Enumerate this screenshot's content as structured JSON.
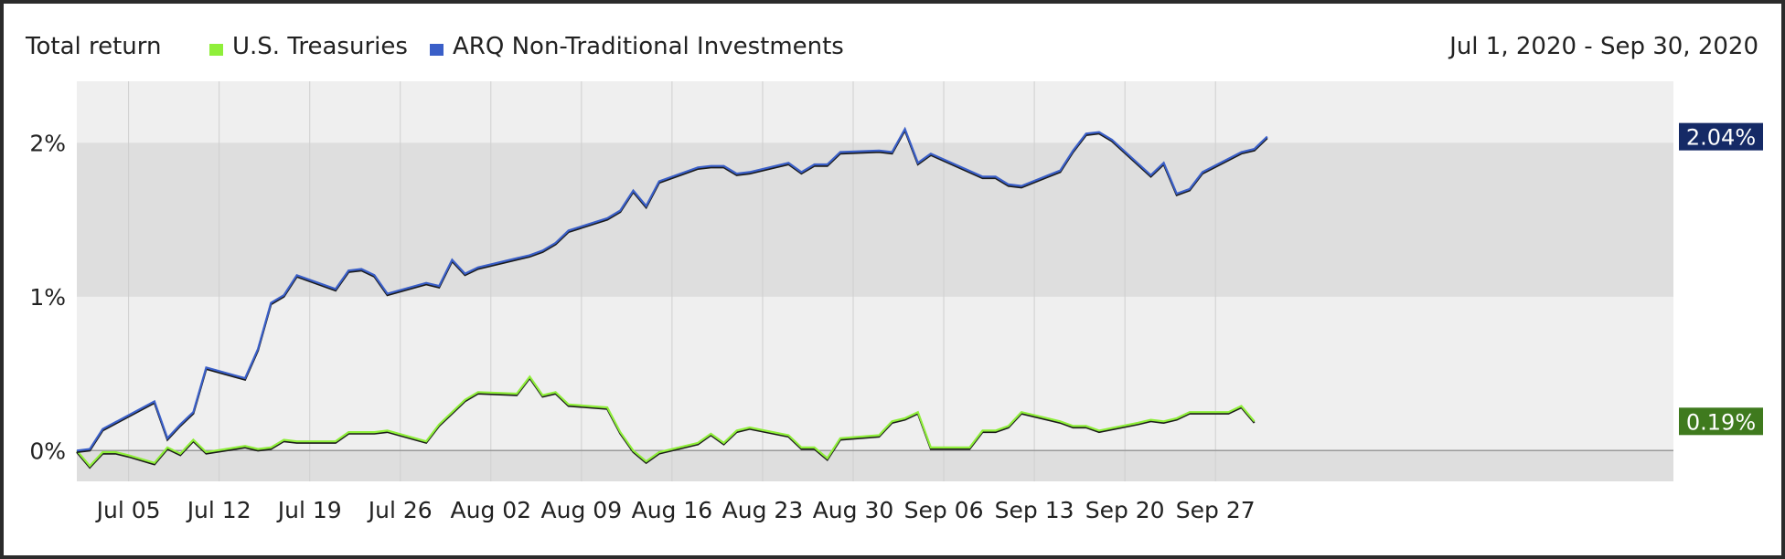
{
  "header": {
    "title": "Total return",
    "date_range": "Jul 1, 2020 - Sep 30, 2020"
  },
  "colors": {
    "treasuries": "#8fef3a",
    "treasuries_badge": "#3f7a1e",
    "arq": "#3a5fc8",
    "arq_badge": "#152a66",
    "band_light": "#efefef",
    "band_dark": "#dedede"
  },
  "chart_data": {
    "type": "line",
    "x_start": "2020-07-01",
    "x_end": "2020-09-30",
    "ylim": [
      -0.2,
      2.4
    ],
    "ylabel": "",
    "xlabel": "",
    "y_ticks": [
      {
        "value": 0,
        "label": "0%"
      },
      {
        "value": 1,
        "label": "1%"
      },
      {
        "value": 2,
        "label": "2%"
      }
    ],
    "x_ticks": [
      {
        "date": "2020-07-05",
        "label": "Jul 05"
      },
      {
        "date": "2020-07-12",
        "label": "Jul 12"
      },
      {
        "date": "2020-07-19",
        "label": "Jul 19"
      },
      {
        "date": "2020-07-26",
        "label": "Jul 26"
      },
      {
        "date": "2020-08-02",
        "label": "Aug 02"
      },
      {
        "date": "2020-08-09",
        "label": "Aug 09"
      },
      {
        "date": "2020-08-16",
        "label": "Aug 16"
      },
      {
        "date": "2020-08-23",
        "label": "Aug 23"
      },
      {
        "date": "2020-08-30",
        "label": "Aug 30"
      },
      {
        "date": "2020-09-06",
        "label": "Sep 06"
      },
      {
        "date": "2020-09-13",
        "label": "Sep 13"
      },
      {
        "date": "2020-09-20",
        "label": "Sep 20"
      },
      {
        "date": "2020-09-27",
        "label": "Sep 27"
      }
    ],
    "grid": true,
    "legend_position": "top-left",
    "series": [
      {
        "name": "U.S. Treasuries",
        "end_label": "0.19%",
        "points": [
          {
            "x": "2020-07-01",
            "y": 0.0
          },
          {
            "x": "2020-07-02",
            "y": -0.1
          },
          {
            "x": "2020-07-03",
            "y": -0.01
          },
          {
            "x": "2020-07-04",
            "y": -0.01
          },
          {
            "x": "2020-07-05",
            "y": -0.03
          },
          {
            "x": "2020-07-07",
            "y": -0.08
          },
          {
            "x": "2020-07-08",
            "y": 0.02
          },
          {
            "x": "2020-07-09",
            "y": -0.02
          },
          {
            "x": "2020-07-10",
            "y": 0.07
          },
          {
            "x": "2020-07-11",
            "y": -0.01
          },
          {
            "x": "2020-07-14",
            "y": 0.03
          },
          {
            "x": "2020-07-15",
            "y": 0.01
          },
          {
            "x": "2020-07-16",
            "y": 0.02
          },
          {
            "x": "2020-07-17",
            "y": 0.07
          },
          {
            "x": "2020-07-18",
            "y": 0.06
          },
          {
            "x": "2020-07-21",
            "y": 0.06
          },
          {
            "x": "2020-07-22",
            "y": 0.12
          },
          {
            "x": "2020-07-23",
            "y": 0.12
          },
          {
            "x": "2020-07-24",
            "y": 0.12
          },
          {
            "x": "2020-07-25",
            "y": 0.13
          },
          {
            "x": "2020-07-28",
            "y": 0.06
          },
          {
            "x": "2020-07-29",
            "y": 0.17
          },
          {
            "x": "2020-07-30",
            "y": 0.25
          },
          {
            "x": "2020-07-31",
            "y": 0.33
          },
          {
            "x": "2020-08-01",
            "y": 0.38
          },
          {
            "x": "2020-08-04",
            "y": 0.37
          },
          {
            "x": "2020-08-05",
            "y": 0.48
          },
          {
            "x": "2020-08-06",
            "y": 0.36
          },
          {
            "x": "2020-08-07",
            "y": 0.38
          },
          {
            "x": "2020-08-08",
            "y": 0.3
          },
          {
            "x": "2020-08-11",
            "y": 0.28
          },
          {
            "x": "2020-08-12",
            "y": 0.12
          },
          {
            "x": "2020-08-13",
            "y": 0.0
          },
          {
            "x": "2020-08-14",
            "y": -0.07
          },
          {
            "x": "2020-08-15",
            "y": -0.01
          },
          {
            "x": "2020-08-18",
            "y": 0.05
          },
          {
            "x": "2020-08-19",
            "y": 0.11
          },
          {
            "x": "2020-08-20",
            "y": 0.05
          },
          {
            "x": "2020-08-21",
            "y": 0.13
          },
          {
            "x": "2020-08-22",
            "y": 0.15
          },
          {
            "x": "2020-08-25",
            "y": 0.1
          },
          {
            "x": "2020-08-26",
            "y": 0.02
          },
          {
            "x": "2020-08-27",
            "y": 0.02
          },
          {
            "x": "2020-08-28",
            "y": -0.05
          },
          {
            "x": "2020-08-29",
            "y": 0.08
          },
          {
            "x": "2020-09-01",
            "y": 0.1
          },
          {
            "x": "2020-09-02",
            "y": 0.19
          },
          {
            "x": "2020-09-03",
            "y": 0.21
          },
          {
            "x": "2020-09-04",
            "y": 0.25
          },
          {
            "x": "2020-09-05",
            "y": 0.02
          },
          {
            "x": "2020-09-08",
            "y": 0.02
          },
          {
            "x": "2020-09-09",
            "y": 0.13
          },
          {
            "x": "2020-09-10",
            "y": 0.13
          },
          {
            "x": "2020-09-11",
            "y": 0.16
          },
          {
            "x": "2020-09-12",
            "y": 0.25
          },
          {
            "x": "2020-09-15",
            "y": 0.19
          },
          {
            "x": "2020-09-16",
            "y": 0.16
          },
          {
            "x": "2020-09-17",
            "y": 0.16
          },
          {
            "x": "2020-09-18",
            "y": 0.13
          },
          {
            "x": "2020-09-21",
            "y": 0.18
          },
          {
            "x": "2020-09-22",
            "y": 0.2
          },
          {
            "x": "2020-09-23",
            "y": 0.19
          },
          {
            "x": "2020-09-24",
            "y": 0.21
          },
          {
            "x": "2020-09-25",
            "y": 0.25
          },
          {
            "x": "2020-09-28",
            "y": 0.25
          },
          {
            "x": "2020-09-29",
            "y": 0.29
          },
          {
            "x": "2020-09-30",
            "y": 0.19
          }
        ]
      },
      {
        "name": "ARQ Non-Traditional Investments",
        "end_label": "2.04%",
        "points": [
          {
            "x": "2020-07-01",
            "y": 0.0
          },
          {
            "x": "2020-07-02",
            "y": 0.01
          },
          {
            "x": "2020-07-03",
            "y": 0.14
          },
          {
            "x": "2020-07-07",
            "y": 0.32
          },
          {
            "x": "2020-07-08",
            "y": 0.08
          },
          {
            "x": "2020-07-09",
            "y": 0.17
          },
          {
            "x": "2020-07-10",
            "y": 0.25
          },
          {
            "x": "2020-07-11",
            "y": 0.54
          },
          {
            "x": "2020-07-14",
            "y": 0.47
          },
          {
            "x": "2020-07-15",
            "y": 0.66
          },
          {
            "x": "2020-07-16",
            "y": 0.96
          },
          {
            "x": "2020-07-17",
            "y": 1.01
          },
          {
            "x": "2020-07-18",
            "y": 1.14
          },
          {
            "x": "2020-07-21",
            "y": 1.05
          },
          {
            "x": "2020-07-22",
            "y": 1.17
          },
          {
            "x": "2020-07-23",
            "y": 1.18
          },
          {
            "x": "2020-07-24",
            "y": 1.14
          },
          {
            "x": "2020-07-25",
            "y": 1.02
          },
          {
            "x": "2020-07-28",
            "y": 1.09
          },
          {
            "x": "2020-07-29",
            "y": 1.07
          },
          {
            "x": "2020-07-30",
            "y": 1.24
          },
          {
            "x": "2020-07-31",
            "y": 1.15
          },
          {
            "x": "2020-08-01",
            "y": 1.19
          },
          {
            "x": "2020-08-04",
            "y": 1.25
          },
          {
            "x": "2020-08-05",
            "y": 1.27
          },
          {
            "x": "2020-08-06",
            "y": 1.3
          },
          {
            "x": "2020-08-07",
            "y": 1.35
          },
          {
            "x": "2020-08-08",
            "y": 1.43
          },
          {
            "x": "2020-08-11",
            "y": 1.51
          },
          {
            "x": "2020-08-12",
            "y": 1.56
          },
          {
            "x": "2020-08-13",
            "y": 1.69
          },
          {
            "x": "2020-08-14",
            "y": 1.59
          },
          {
            "x": "2020-08-15",
            "y": 1.75
          },
          {
            "x": "2020-08-18",
            "y": 1.84
          },
          {
            "x": "2020-08-19",
            "y": 1.85
          },
          {
            "x": "2020-08-20",
            "y": 1.85
          },
          {
            "x": "2020-08-21",
            "y": 1.8
          },
          {
            "x": "2020-08-22",
            "y": 1.81
          },
          {
            "x": "2020-08-25",
            "y": 1.87
          },
          {
            "x": "2020-08-26",
            "y": 1.81
          },
          {
            "x": "2020-08-27",
            "y": 1.86
          },
          {
            "x": "2020-08-28",
            "y": 1.86
          },
          {
            "x": "2020-08-29",
            "y": 1.94
          },
          {
            "x": "2020-09-01",
            "y": 1.95
          },
          {
            "x": "2020-09-02",
            "y": 1.94
          },
          {
            "x": "2020-09-03",
            "y": 2.09
          },
          {
            "x": "2020-09-04",
            "y": 1.87
          },
          {
            "x": "2020-09-05",
            "y": 1.93
          },
          {
            "x": "2020-09-09",
            "y": 1.78
          },
          {
            "x": "2020-09-10",
            "y": 1.78
          },
          {
            "x": "2020-09-11",
            "y": 1.73
          },
          {
            "x": "2020-09-12",
            "y": 1.72
          },
          {
            "x": "2020-09-15",
            "y": 1.82
          },
          {
            "x": "2020-09-16",
            "y": 1.95
          },
          {
            "x": "2020-09-17",
            "y": 2.06
          },
          {
            "x": "2020-09-18",
            "y": 2.07
          },
          {
            "x": "2020-09-19",
            "y": 2.02
          },
          {
            "x": "2020-09-22",
            "y": 1.79
          },
          {
            "x": "2020-09-23",
            "y": 1.87
          },
          {
            "x": "2020-09-24",
            "y": 1.67
          },
          {
            "x": "2020-09-25",
            "y": 1.7
          },
          {
            "x": "2020-09-26",
            "y": 1.81
          },
          {
            "x": "2020-09-29",
            "y": 1.94
          },
          {
            "x": "2020-09-30",
            "y": 1.96
          },
          {
            "x": "2020-10-01",
            "y": 2.04
          }
        ]
      }
    ]
  }
}
